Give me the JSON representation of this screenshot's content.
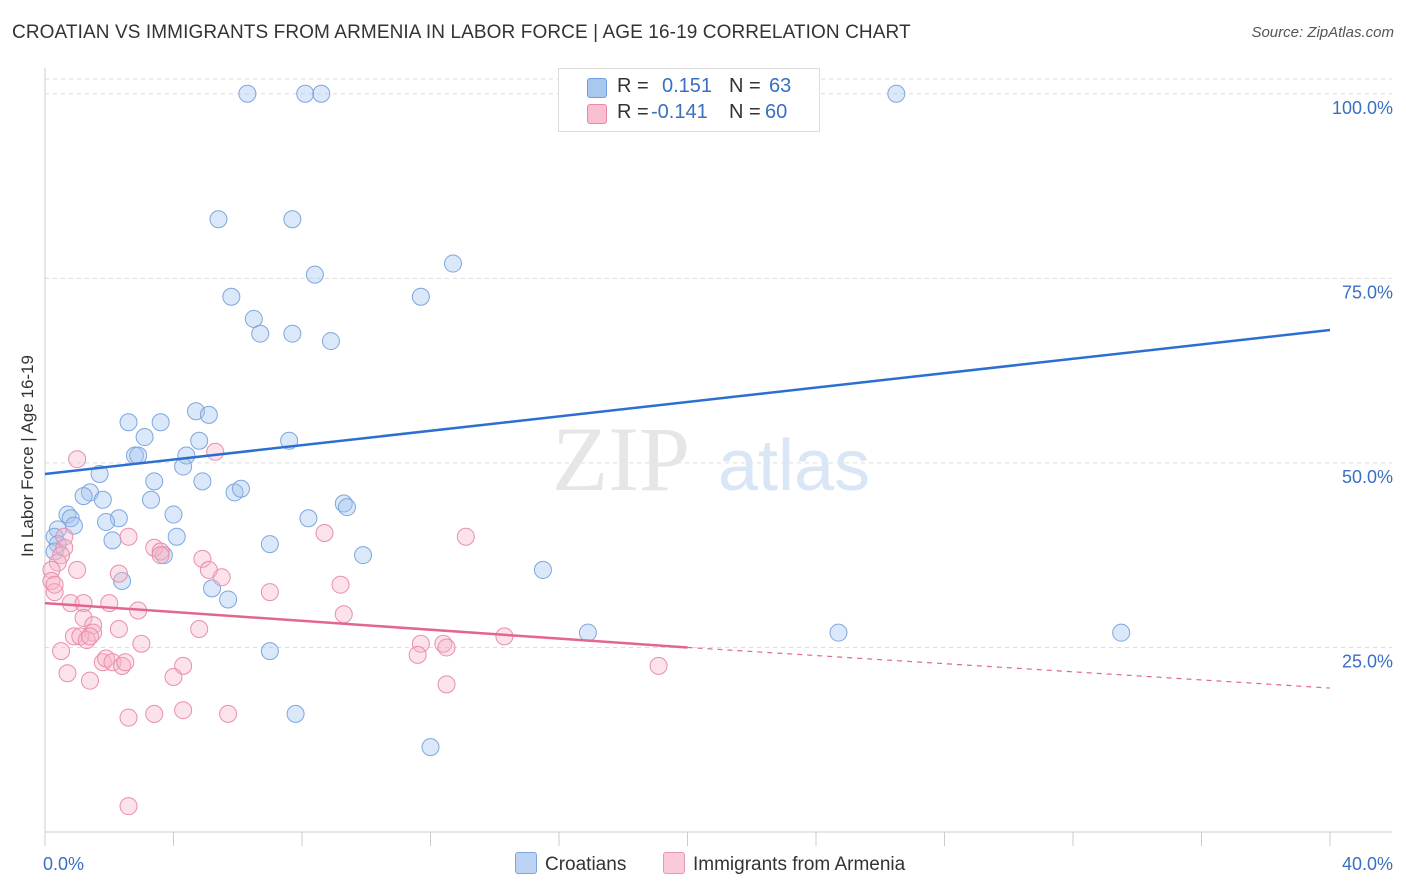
{
  "title": "CROATIAN VS IMMIGRANTS FROM ARMENIA IN LABOR FORCE | AGE 16-19 CORRELATION CHART",
  "source": "Source: ZipAtlas.com",
  "watermark": {
    "zip": "ZIP",
    "atlas": "atlas"
  },
  "legend": {
    "rows": [
      {
        "r_label": "R =",
        "r_value": "0.151",
        "n_label": "N =",
        "n_value": "63",
        "color": "#a9c8f0",
        "border": "#6f9fdc"
      },
      {
        "r_label": "R =",
        "r_value": "-0.141",
        "n_label": "N =",
        "n_value": "60",
        "color": "#f8bfd0",
        "border": "#e98aa8"
      }
    ]
  },
  "bottom_legend": [
    {
      "label": "Croatians",
      "color": "#bcd3f3",
      "border": "#7ea6de"
    },
    {
      "label": "Immigrants from Armenia",
      "color": "#f9cad8",
      "border": "#e996b0"
    }
  ],
  "colors": {
    "blue_fill": "rgba(160,195,238,0.38)",
    "blue_stroke": "#7ea6de",
    "blue_line": "#2d6fd0",
    "pink_fill": "rgba(247,180,200,0.38)",
    "pink_stroke": "#e88fab",
    "pink_line": "#e2678e",
    "axis_text": "#3a6fc2",
    "grid": "#dcdcdc"
  },
  "chart_data": {
    "type": "scatter",
    "title": "CROATIAN VS IMMIGRANTS FROM ARMENIA IN LABOR FORCE | AGE 16-19 CORRELATION CHART",
    "xlabel": "",
    "ylabel": "In Labor Force | Age 16-19",
    "xlim": [
      0,
      40
    ],
    "ylim": [
      0,
      102
    ],
    "x_tick_labels": [
      {
        "value": 0,
        "label": "0.0%"
      },
      {
        "value": 40,
        "label": "40.0%"
      }
    ],
    "x_minor_ticks": [
      0,
      4,
      8,
      12,
      16,
      20,
      24,
      28,
      32,
      36,
      40
    ],
    "y_ticks": [
      {
        "value": 25,
        "label": "25.0%"
      },
      {
        "value": 50,
        "label": "50.0%"
      },
      {
        "value": 75,
        "label": "75.0%"
      },
      {
        "value": 100,
        "label": "100.0%"
      }
    ],
    "grid": "horizontal dashed",
    "legend_position": "top-center",
    "series": [
      {
        "name": "Croatians",
        "points": [
          [
            6.3,
            100
          ],
          [
            8.1,
            100
          ],
          [
            8.6,
            100
          ],
          [
            22.7,
            100
          ],
          [
            26.5,
            100
          ],
          [
            5.4,
            83
          ],
          [
            7.7,
            83
          ],
          [
            8.4,
            75.5
          ],
          [
            12.7,
            77
          ],
          [
            5.8,
            72.5
          ],
          [
            11.7,
            72.5
          ],
          [
            6.5,
            69.5
          ],
          [
            6.7,
            67.5
          ],
          [
            7.7,
            67.5
          ],
          [
            8.9,
            66.5
          ],
          [
            2.6,
            55.5
          ],
          [
            3.6,
            55.5
          ],
          [
            4.7,
            57
          ],
          [
            5.1,
            56.5
          ],
          [
            3.1,
            53.5
          ],
          [
            4.8,
            53
          ],
          [
            7.6,
            53
          ],
          [
            2.8,
            51
          ],
          [
            2.9,
            51
          ],
          [
            4.4,
            51
          ],
          [
            4.3,
            49.5
          ],
          [
            1.7,
            48.5
          ],
          [
            3.4,
            47.5
          ],
          [
            4.9,
            47.5
          ],
          [
            1.4,
            46
          ],
          [
            1.2,
            45.5
          ],
          [
            1.8,
            45
          ],
          [
            3.3,
            45
          ],
          [
            5.9,
            46
          ],
          [
            6.1,
            46.5
          ],
          [
            9.3,
            44.5
          ],
          [
            9.4,
            44
          ],
          [
            0.7,
            43
          ],
          [
            0.8,
            42.5
          ],
          [
            2.3,
            42.5
          ],
          [
            4.0,
            43
          ],
          [
            8.2,
            42.5
          ],
          [
            0.4,
            41
          ],
          [
            0.9,
            41.5
          ],
          [
            1.9,
            42
          ],
          [
            0.3,
            40
          ],
          [
            0.4,
            39
          ],
          [
            2.1,
            39.5
          ],
          [
            4.1,
            40
          ],
          [
            7.0,
            39
          ],
          [
            0.3,
            38
          ],
          [
            3.7,
            37.5
          ],
          [
            9.9,
            37.5
          ],
          [
            15.5,
            35.5
          ],
          [
            2.4,
            34
          ],
          [
            5.2,
            33
          ],
          [
            5.7,
            31.5
          ],
          [
            16.9,
            27
          ],
          [
            24.7,
            27
          ],
          [
            33.5,
            27
          ],
          [
            7.0,
            24.5
          ],
          [
            7.8,
            16
          ],
          [
            12.0,
            11.5
          ]
        ]
      },
      {
        "name": "Immigrants from Armenia",
        "points": [
          [
            1.0,
            50.5
          ],
          [
            5.3,
            51.5
          ],
          [
            8.7,
            40.5
          ],
          [
            13.1,
            40
          ],
          [
            0.6,
            40
          ],
          [
            0.6,
            38.5
          ],
          [
            3.4,
            38.5
          ],
          [
            3.6,
            38
          ],
          [
            2.6,
            40
          ],
          [
            0.5,
            37.5
          ],
          [
            0.4,
            36.5
          ],
          [
            0.2,
            35.5
          ],
          [
            1.0,
            35.5
          ],
          [
            2.3,
            35
          ],
          [
            4.9,
            37
          ],
          [
            5.1,
            35.5
          ],
          [
            5.5,
            34.5
          ],
          [
            0.2,
            34
          ],
          [
            0.3,
            32.5
          ],
          [
            0.3,
            33.5
          ],
          [
            7.0,
            32.5
          ],
          [
            9.2,
            33.5
          ],
          [
            0.8,
            31
          ],
          [
            1.2,
            31
          ],
          [
            2.0,
            31
          ],
          [
            2.9,
            30
          ],
          [
            1.2,
            29
          ],
          [
            1.5,
            28
          ],
          [
            1.5,
            27
          ],
          [
            2.3,
            27.5
          ],
          [
            4.8,
            27.5
          ],
          [
            9.3,
            29.5
          ],
          [
            0.9,
            26.5
          ],
          [
            1.1,
            26.5
          ],
          [
            1.3,
            26
          ],
          [
            1.4,
            26.5
          ],
          [
            3.0,
            25.5
          ],
          [
            11.7,
            25.5
          ],
          [
            12.4,
            25.5
          ],
          [
            12.5,
            25
          ],
          [
            14.3,
            26.5
          ],
          [
            0.5,
            24.5
          ],
          [
            1.8,
            23
          ],
          [
            1.9,
            23.5
          ],
          [
            2.1,
            23
          ],
          [
            2.4,
            22.5
          ],
          [
            2.5,
            23
          ],
          [
            4.3,
            22.5
          ],
          [
            0.7,
            21.5
          ],
          [
            1.4,
            20.5
          ],
          [
            4.0,
            21
          ],
          [
            12.5,
            20
          ],
          [
            19.1,
            22.5
          ],
          [
            11.6,
            24
          ],
          [
            4.3,
            16.5
          ],
          [
            5.7,
            16
          ],
          [
            3.4,
            16
          ],
          [
            2.6,
            15.5
          ],
          [
            2.6,
            3.5
          ],
          [
            3.6,
            37.5
          ]
        ]
      }
    ],
    "trend_lines": [
      {
        "series": "Croatians",
        "x": [
          0,
          40
        ],
        "y": [
          48.5,
          68
        ],
        "style": "solid"
      },
      {
        "series": "Immigrants from Armenia",
        "x": [
          0,
          20
        ],
        "y": [
          31,
          25
        ],
        "style": "solid"
      },
      {
        "series": "Immigrants from Armenia",
        "x": [
          20,
          40
        ],
        "y": [
          25,
          19.5
        ],
        "style": "dashed"
      }
    ]
  }
}
